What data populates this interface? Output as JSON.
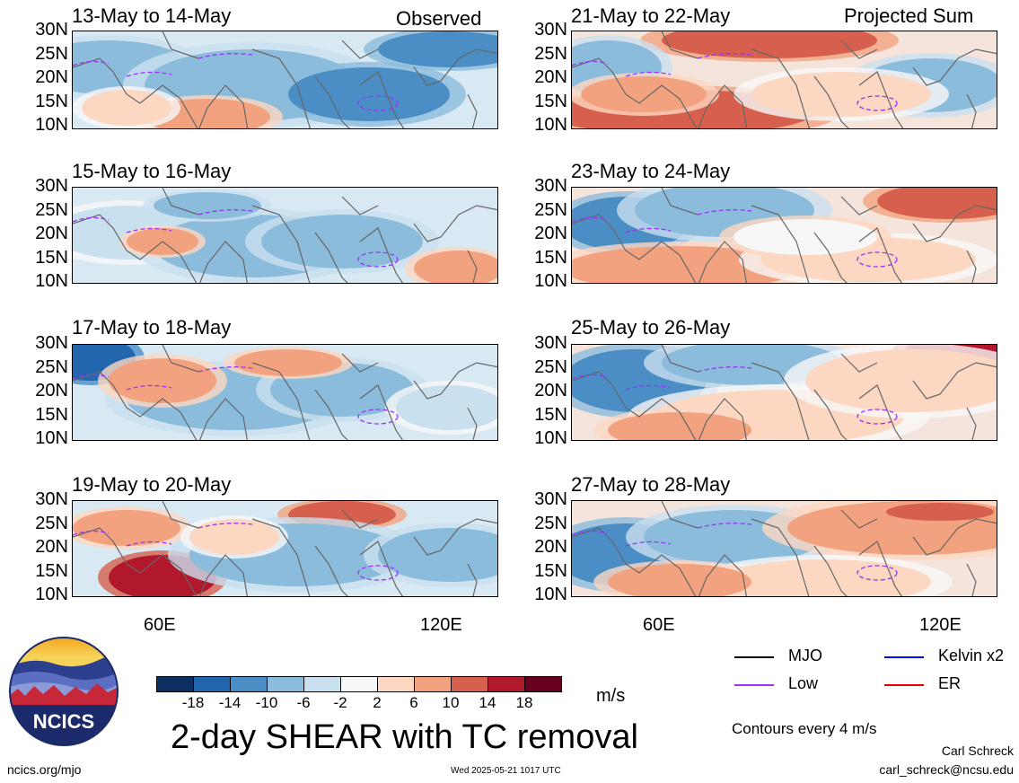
{
  "panels": [
    {
      "title": "13-May to 14-May",
      "tag": "Observed"
    },
    {
      "title": "15-May to 16-May",
      "tag": ""
    },
    {
      "title": "17-May to 18-May",
      "tag": ""
    },
    {
      "title": "19-May to 20-May",
      "tag": ""
    },
    {
      "title": "21-May to 22-May",
      "tag": "Projected Sum"
    },
    {
      "title": "23-May to 24-May",
      "tag": ""
    },
    {
      "title": "25-May to 26-May",
      "tag": ""
    },
    {
      "title": "27-May to 28-May",
      "tag": ""
    }
  ],
  "lat_labels": [
    "30N",
    "25N",
    "20N",
    "15N",
    "10N"
  ],
  "lon_labels": [
    "60E",
    "120E"
  ],
  "colorbar": {
    "ticks": [
      "-18",
      "-14",
      "-10",
      "-6",
      "-2",
      "2",
      "6",
      "10",
      "14",
      "18"
    ],
    "colors": [
      "#0b2f5e",
      "#2266ae",
      "#4a8ec5",
      "#8cbcdc",
      "#c9e0ef",
      "#f7f7f7",
      "#fcd7c2",
      "#f2a27f",
      "#d6604d",
      "#b2182b",
      "#67001f"
    ],
    "unit": "m/s"
  },
  "legend": [
    {
      "label": "MJO",
      "color": "#000000"
    },
    {
      "label": "Kelvin x2",
      "color": "#0000ff"
    },
    {
      "label": "Low",
      "color": "#9b30ff"
    },
    {
      "label": "ER",
      "color": "#e60000"
    }
  ],
  "contour_note": "Contours every 4 m/s",
  "main_title": "2-day SHEAR with TC removal",
  "logo_text": "NCICS",
  "footer": {
    "left": "ncics.org/mjo",
    "center": "Wed 2025-05-21 1017 UTC",
    "author": "Carl Schreck",
    "email": "carl_schreck@ncsu.edu"
  }
}
